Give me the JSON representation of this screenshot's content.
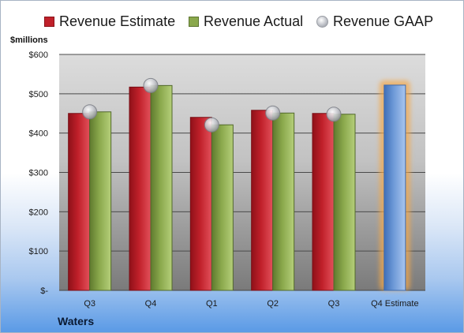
{
  "legend": {
    "estimate": "Revenue Estimate",
    "actual": "Revenue Actual",
    "gaap": "Revenue GAAP"
  },
  "unit_label": "$millions",
  "company": "Waters",
  "colors": {
    "estimate": "#c0202a",
    "actual": "#8aa84c",
    "gaap": "#c4c6cc",
    "forecast": "#6e9ad8",
    "forecast_glow": "#f4a84a"
  },
  "chart_data": {
    "type": "bar",
    "categories": [
      "Q3",
      "Q4",
      "Q1",
      "Q2",
      "Q3",
      "Q4 Estimate"
    ],
    "series": [
      {
        "name": "Revenue Estimate",
        "values": [
          450,
          517,
          440,
          458,
          450,
          null
        ]
      },
      {
        "name": "Revenue Actual",
        "values": [
          454,
          521,
          421,
          451,
          448,
          522
        ]
      },
      {
        "name": "Revenue GAAP",
        "values": [
          454,
          521,
          421,
          451,
          448,
          null
        ]
      }
    ],
    "highlighted_category": "Q4 Estimate",
    "yticks": [
      "$-",
      "$100",
      "$200",
      "$300",
      "$400",
      "$500",
      "$600"
    ],
    "ylim": [
      0,
      600
    ],
    "grid": true,
    "legend_position": "top"
  }
}
